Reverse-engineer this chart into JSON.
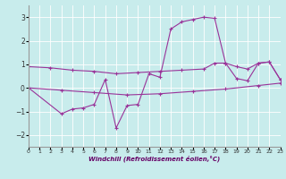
{
  "xlabel": "Windchill (Refroidissement éolien,°C)",
  "xlim": [
    0,
    23
  ],
  "ylim": [
    -2.5,
    3.5
  ],
  "yticks": [
    -2,
    -1,
    0,
    1,
    2,
    3
  ],
  "xticks": [
    0,
    1,
    2,
    3,
    4,
    5,
    6,
    7,
    8,
    9,
    10,
    11,
    12,
    13,
    14,
    15,
    16,
    17,
    18,
    19,
    20,
    21,
    22,
    23
  ],
  "bg_color": "#c8ecec",
  "line_color": "#993399",
  "grid_color": "#ffffff",
  "line1_x": [
    0,
    3,
    6,
    9,
    12,
    15,
    18,
    21,
    23
  ],
  "line1_y": [
    0.0,
    -0.1,
    -0.2,
    -0.3,
    -0.25,
    -0.15,
    -0.05,
    0.1,
    0.2
  ],
  "line2_x": [
    0,
    2,
    4,
    6,
    8,
    10,
    12,
    14,
    16,
    17,
    18,
    19,
    20,
    21,
    22,
    23
  ],
  "line2_y": [
    0.9,
    0.85,
    0.75,
    0.7,
    0.6,
    0.65,
    0.7,
    0.75,
    0.8,
    1.05,
    1.05,
    0.9,
    0.8,
    1.05,
    1.1,
    0.35
  ],
  "line3_x": [
    0,
    3,
    4,
    5,
    6,
    7,
    8,
    9,
    10,
    11,
    12,
    13,
    14,
    15,
    16,
    17,
    18,
    19,
    20,
    21,
    22,
    23
  ],
  "line3_y": [
    0.0,
    -1.1,
    -0.9,
    -0.85,
    -0.7,
    0.35,
    -1.7,
    -0.75,
    -0.7,
    0.6,
    0.45,
    2.5,
    2.8,
    2.9,
    3.0,
    2.95,
    1.05,
    0.4,
    0.3,
    1.05,
    1.1,
    0.35
  ]
}
